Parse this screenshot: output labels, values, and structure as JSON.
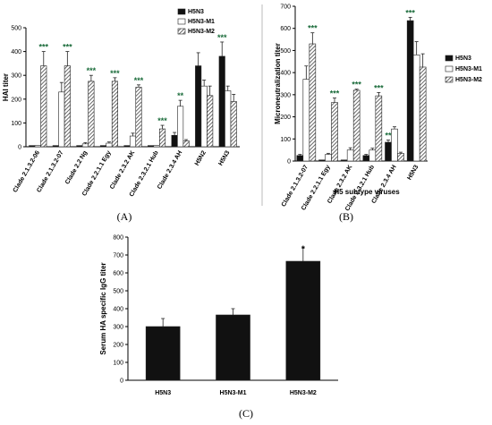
{
  "colors": {
    "h5n3": "#111111",
    "m1": "#ffffff",
    "m2_hatch": "#444444",
    "sig_green": "#1a6b3a",
    "sig_black": "#000000"
  },
  "legend": [
    "H5N3",
    "H5N3-M1",
    "H5N3-M2"
  ],
  "panels": {
    "A": "(A)",
    "B": "(B)",
    "C": "(C)"
  },
  "chart_data": [
    {
      "type": "bar",
      "panel": "(A)",
      "ylabel": "HAI titer",
      "ylim": [
        0,
        500
      ],
      "yticks": [
        "0",
        "100",
        "200",
        "300",
        "400",
        "500"
      ],
      "categories": [
        "Clade 2.1.3.2-06",
        "Clade 2.1.3.2-07",
        "Clade 2.2 Ng",
        "Clade 2.2.1.1 Egy",
        "Clade 2.3.2 AK",
        "Clade 2.3.2.1 Hub",
        "Clade 2.3.4 AH",
        "H5N2",
        "H5N3"
      ],
      "series": [
        {
          "name": "H5N3",
          "values": [
            5,
            5,
            5,
            5,
            5,
            5,
            48,
            340,
            380
          ],
          "errors": [
            0,
            0,
            0,
            0,
            0,
            0,
            12,
            55,
            60
          ]
        },
        {
          "name": "H5N3-M1",
          "values": [
            5,
            230,
            12,
            15,
            45,
            5,
            170,
            255,
            235
          ],
          "errors": [
            0,
            40,
            5,
            5,
            12,
            0,
            25,
            25,
            20
          ]
        },
        {
          "name": "H5N3-M2",
          "values": [
            340,
            340,
            275,
            275,
            250,
            75,
            25,
            215,
            190
          ],
          "errors": [
            60,
            60,
            25,
            15,
            10,
            15,
            5,
            40,
            30
          ]
        }
      ],
      "significance": [
        {
          "category": 0,
          "series": 2,
          "label": "***",
          "color": "green"
        },
        {
          "category": 1,
          "series": 2,
          "label": "***",
          "color": "green"
        },
        {
          "category": 2,
          "series": 2,
          "label": "***",
          "color": "green"
        },
        {
          "category": 3,
          "series": 2,
          "label": "***",
          "color": "green"
        },
        {
          "category": 4,
          "series": 2,
          "label": "***",
          "color": "green"
        },
        {
          "category": 5,
          "series": 2,
          "label": "***",
          "color": "green"
        },
        {
          "category": 6,
          "series": 1,
          "label": "**",
          "color": "green"
        },
        {
          "category": 8,
          "series": 0,
          "label": "***",
          "color": "green"
        }
      ]
    },
    {
      "type": "bar",
      "panel": "(B)",
      "xlabel": "H5 subtype viruses",
      "ylabel": "Microneutralization titer",
      "ylim": [
        0,
        700
      ],
      "yticks": [
        "0",
        "100",
        "200",
        "300",
        "400",
        "500",
        "600",
        "700"
      ],
      "categories": [
        "Clade 2.1.3.2-07",
        "Clade 2.2.1.1 Egy",
        "Clade 2.3.2 AK",
        "Clade 2.3.2.1 Hub",
        "Clade 2.3.4 AH",
        "H5N3"
      ],
      "series": [
        {
          "name": "H5N3",
          "values": [
            25,
            5,
            5,
            25,
            85,
            635
          ],
          "errors": [
            5,
            0,
            0,
            5,
            10,
            15
          ]
        },
        {
          "name": "H5N3-M1",
          "values": [
            370,
            30,
            50,
            50,
            145,
            480
          ],
          "errors": [
            60,
            5,
            10,
            8,
            10,
            60
          ]
        },
        {
          "name": "H5N3-M2",
          "values": [
            530,
            265,
            320,
            295,
            35,
            425
          ],
          "errors": [
            50,
            20,
            5,
            15,
            5,
            60
          ]
        }
      ],
      "significance": [
        {
          "category": 0,
          "series": 2,
          "label": "***",
          "color": "green"
        },
        {
          "category": 1,
          "series": 2,
          "label": "***",
          "color": "green"
        },
        {
          "category": 2,
          "series": 2,
          "label": "***",
          "color": "green"
        },
        {
          "category": 3,
          "series": 2,
          "label": "***",
          "color": "green"
        },
        {
          "category": 4,
          "series": 0,
          "label": "**",
          "color": "green"
        },
        {
          "category": 5,
          "series": 0,
          "label": "***",
          "color": "green"
        }
      ]
    },
    {
      "type": "bar",
      "panel": "(C)",
      "ylabel": "Serum HA specific IgG titer",
      "ylim": [
        0,
        800
      ],
      "yticks": [
        "0",
        "100",
        "200",
        "300",
        "400",
        "500",
        "600",
        "700",
        "800"
      ],
      "categories": [
        "H5N3",
        "H5N3-M1",
        "H5N3-M2"
      ],
      "series": [
        {
          "values": [
            300,
            365,
            665
          ],
          "errors": [
            45,
            35,
            75
          ]
        }
      ],
      "significance": [
        {
          "category": 2,
          "series": 0,
          "label": "*",
          "color": "black"
        }
      ]
    }
  ]
}
